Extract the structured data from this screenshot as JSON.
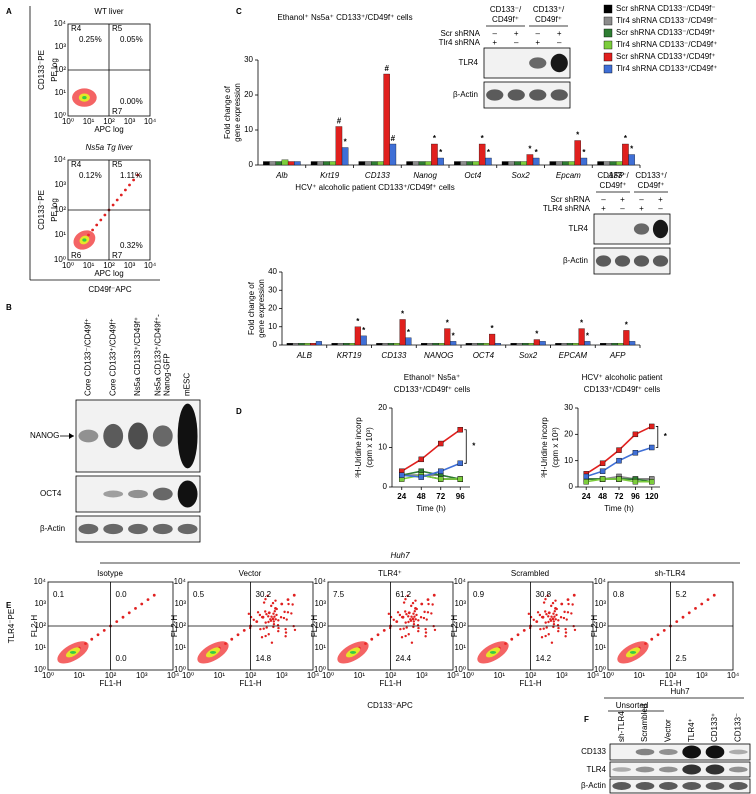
{
  "panel_a": {
    "label": "A",
    "plots": [
      {
        "title": "WT liver",
        "regions": [
          "R4",
          "R5",
          "R7"
        ],
        "values": [
          "0.25%",
          "0.05%",
          "0.00%"
        ]
      },
      {
        "title": "Ns5a Tg liver",
        "regions": [
          "R4",
          "R5",
          "R6",
          "R7"
        ],
        "values": [
          "0.12%",
          "1.11%",
          "0.32%"
        ]
      }
    ],
    "axis_x": "APC log",
    "axis_y": "PE log",
    "x_label": "CD49f⁻APC",
    "y_label": "CD133⁻PE",
    "ticks": [
      "10⁰",
      "10¹",
      "10²",
      "10³",
      "10⁴"
    ]
  },
  "panel_b": {
    "label": "B",
    "lanes": [
      [
        "Core CD133⁻/CD49f⁺"
      ],
      [
        "Core CD133⁺/CD49f⁺"
      ],
      [
        "Ns5a CD133⁺/CD49f⁺"
      ],
      [
        "Ns5a CD133⁺/CD49f⁺-",
        "Nanog-GFP"
      ],
      [
        "mESC"
      ]
    ],
    "rows": [
      "NANOG",
      "OCT4",
      "β-Actin"
    ]
  },
  "panel_c": {
    "label": "C",
    "blot_top": {
      "groups": [
        [
          "CD133⁻/",
          "CD49f⁺"
        ],
        [
          "CD133⁺/",
          "CD49f⁺"
        ]
      ],
      "conditions": [
        {
          "name": "Scr shRNA",
          "signs": [
            "–",
            "+",
            "–",
            "+"
          ]
        },
        {
          "name": "Tlr4 shRNA",
          "signs": [
            "+",
            "–",
            "+",
            "–"
          ]
        }
      ],
      "rows": [
        "TLR4",
        "β-Actin"
      ]
    },
    "blot_bottom": {
      "groups": [
        [
          "CD133⁻/",
          "CD49f⁺"
        ],
        [
          "CD133⁺/",
          "CD49f⁺"
        ]
      ],
      "conditions": [
        {
          "name": "Scr shRNA",
          "signs": [
            "–",
            "+",
            "–",
            "+"
          ]
        },
        {
          "name": "TLR4 shRNA",
          "signs": [
            "+",
            "–",
            "+",
            "–"
          ]
        }
      ],
      "rows": [
        "TLR4",
        "β-Actin"
      ]
    }
  },
  "panel_d": {
    "label": "D"
  },
  "panel_e": {
    "label": "E",
    "group": "Huh7",
    "plots": [
      {
        "title": "Isotype",
        "values": [
          "0.1",
          "0.0",
          "0.0"
        ]
      },
      {
        "title": "Vector",
        "values": [
          "0.5",
          "30.2",
          "14.8"
        ]
      },
      {
        "title": "TLR4⁺",
        "values": [
          "7.5",
          "61.2",
          "24.4"
        ]
      },
      {
        "title": "Scrambled",
        "values": [
          "0.9",
          "30.8",
          "14.2"
        ]
      },
      {
        "title": "sh-TLR4",
        "values": [
          "0.8",
          "5.2",
          "2.5"
        ]
      }
    ],
    "axis_x": "FL1-H",
    "axis_y": "FL2-H",
    "x_label": "CD133⁻APC",
    "y_label": "TLR4⁻PE",
    "ticks": [
      "10⁰",
      "10¹",
      "10²",
      "10³",
      "10⁴"
    ]
  },
  "panel_f": {
    "label": "F",
    "group": "Huh7",
    "subgroup": "Unsorted",
    "lanes": [
      "sh-TLR4",
      "Scrambled",
      "Vector",
      "TLR4⁺",
      "CD133⁺",
      "CD133⁻"
    ],
    "rows": [
      "CD133",
      "TLR4",
      "β-Actin"
    ]
  },
  "chart_data": [
    {
      "type": "bar",
      "title": "Ethanol⁺ Ns5a⁺ CD133⁺/CD49f⁺ cells",
      "ylabel": [
        "Fold change of",
        "gene expression"
      ],
      "categories": [
        "Alb",
        "Krt19",
        "CD133",
        "Nanog",
        "Oct4",
        "Sox2",
        "Epcam",
        "AFP"
      ],
      "ylim": [
        0,
        30
      ],
      "yticks": [
        0,
        10,
        20,
        30
      ],
      "series": [
        {
          "name": "Scr shRNA CD133⁻/CD49f⁻",
          "color": "#000000",
          "values": [
            1,
            1,
            1,
            1,
            1,
            1,
            1,
            1
          ]
        },
        {
          "name": "Tlr4 shRNA CD133⁻/CD49f⁻",
          "color": "#8c8c8c",
          "values": [
            1,
            1,
            1,
            1,
            1,
            1,
            1,
            1
          ]
        },
        {
          "name": "Scr shRNA CD133⁻/CD49f⁺",
          "color": "#2e7d32",
          "values": [
            1,
            1,
            1,
            1,
            1,
            1,
            1,
            1
          ]
        },
        {
          "name": "Tlr4 shRNA CD133⁻/CD49f⁺",
          "color": "#7ccd3c",
          "values": [
            1.5,
            1,
            1,
            1,
            1,
            1,
            1,
            1
          ]
        },
        {
          "name": "Scr shRNA CD133⁺/CD49f⁺",
          "color": "#e0201e",
          "values": [
            1,
            11,
            26,
            6,
            6,
            3,
            7,
            6
          ],
          "significance": [
            null,
            "#",
            "#",
            "*",
            "*",
            "*",
            "*",
            "*"
          ]
        },
        {
          "name": "Tlr4 shRNA CD133⁺/CD49f⁺",
          "color": "#3f6fd6",
          "values": [
            1,
            5,
            6,
            2,
            2,
            2,
            2,
            3
          ],
          "significance": [
            null,
            "*",
            "#",
            "*",
            "*",
            "*",
            "*",
            "*"
          ]
        }
      ]
    },
    {
      "type": "bar",
      "title": "HCV⁺ alcoholic patient CD133⁺/CD49f⁺ cells",
      "ylabel": [
        "Fold change of",
        "gene expression"
      ],
      "categories": [
        "ALB",
        "KRT19",
        "CD133",
        "NANOG",
        "OCT4",
        "Sox2",
        "EPCAM",
        "AFP"
      ],
      "ylim": [
        0,
        40
      ],
      "yticks": [
        0,
        10,
        20,
        30,
        40
      ],
      "series": [
        {
          "name": "Scr shRNA CD133⁻/CD49f⁻",
          "color": "#000000",
          "values": [
            1,
            1,
            1,
            1,
            1,
            1,
            1,
            1
          ]
        },
        {
          "name": "Tlr4 shRNA CD133⁻/CD49f⁻",
          "color": "#8c8c8c",
          "values": [
            1,
            1,
            1,
            1,
            1,
            1,
            1,
            1
          ]
        },
        {
          "name": "Scr shRNA CD133⁻/CD49f⁺",
          "color": "#2e7d32",
          "values": [
            1,
            1,
            1,
            1,
            1,
            1,
            1,
            1
          ]
        },
        {
          "name": "Tlr4 shRNA CD133⁻/CD49f⁺",
          "color": "#7ccd3c",
          "values": [
            1,
            1,
            1,
            1,
            1,
            1,
            1,
            1
          ]
        },
        {
          "name": "Scr shRNA CD133⁺/CD49f⁺",
          "color": "#e0201e",
          "values": [
            1,
            10,
            14,
            9,
            6,
            3,
            9,
            8
          ],
          "significance": [
            null,
            "*",
            "*",
            "*",
            "*",
            "*",
            "*",
            "*"
          ]
        },
        {
          "name": "Tlr4 shRNA CD133⁺/CD49f⁺",
          "color": "#3f6fd6",
          "values": [
            2,
            5,
            4,
            2,
            1,
            2,
            2,
            2
          ],
          "significance": [
            null,
            "*",
            "*",
            "*",
            null,
            null,
            "*",
            null
          ]
        }
      ]
    },
    {
      "type": "line",
      "title": [
        "Ethanol⁺ Ns5a⁺",
        "CD133⁺/CD49f⁺ cells"
      ],
      "ylabel": [
        "³H-Uridine incorp",
        "(cpm x 10³)"
      ],
      "xlabel": "Time (h)",
      "x": [
        24,
        48,
        72,
        96
      ],
      "xlim": [
        12,
        108
      ],
      "xticks": [
        24,
        48,
        72,
        96
      ],
      "ylim": [
        0,
        20
      ],
      "yticks": [
        0,
        10,
        20
      ],
      "annotation": "*",
      "series": [
        {
          "name": "Scr shRNA CD133⁻/CD49f⁻",
          "color": "#000000",
          "values": [
            3,
            3,
            2,
            2
          ]
        },
        {
          "name": "Tlr4 shRNA CD133⁻/CD49f⁻",
          "color": "#8c8c8c",
          "values": [
            3,
            3,
            3,
            2
          ]
        },
        {
          "name": "Scr shRNA CD133⁻/CD49f⁺",
          "color": "#2e7d32",
          "values": [
            3,
            4,
            3,
            2
          ]
        },
        {
          "name": "Tlr4 shRNA CD133⁻/CD49f⁺",
          "color": "#7ccd3c",
          "values": [
            2,
            3,
            2,
            2
          ]
        },
        {
          "name": "Scr shRNA CD133⁺/CD49f⁺",
          "color": "#e0201e",
          "values": [
            4,
            7,
            11,
            14.5
          ]
        },
        {
          "name": "Tlr4 shRNA CD133⁺/CD49f⁺",
          "color": "#3f6fd6",
          "values": [
            3,
            2.5,
            4,
            6
          ]
        }
      ]
    },
    {
      "type": "line",
      "title": [
        "HCV⁺ alcoholic patient",
        "CD133⁺/CD49f⁺ cells"
      ],
      "ylabel": [
        "³H-Uridine incorp",
        "(cpm x 10³)"
      ],
      "xlabel": "Time (h)",
      "x": [
        24,
        48,
        72,
        96,
        120
      ],
      "xlim": [
        12,
        132
      ],
      "xticks": [
        24,
        48,
        72,
        96,
        120
      ],
      "ylim": [
        0,
        30
      ],
      "yticks": [
        0,
        10,
        20,
        30
      ],
      "annotation": "*",
      "series": [
        {
          "name": "Scr shRNA CD133⁻/CD49f⁻",
          "color": "#000000",
          "values": [
            3,
            3,
            3,
            3,
            3
          ]
        },
        {
          "name": "Tlr4 shRNA CD133⁻/CD49f⁻",
          "color": "#8c8c8c",
          "values": [
            3,
            3,
            4,
            3,
            3
          ]
        },
        {
          "name": "Scr shRNA CD133⁻/CD49f⁺",
          "color": "#2e7d32",
          "values": [
            3,
            3,
            3,
            3,
            2
          ]
        },
        {
          "name": "Tlr4 shRNA CD133⁻/CD49f⁺",
          "color": "#7ccd3c",
          "values": [
            2,
            3,
            3,
            2,
            2
          ]
        },
        {
          "name": "Scr shRNA CD133⁺/CD49f⁺",
          "color": "#e0201e",
          "values": [
            5,
            9,
            14,
            20,
            23
          ]
        },
        {
          "name": "Tlr4 shRNA CD133⁺/CD49f⁺",
          "color": "#3f6fd6",
          "values": [
            4,
            6,
            10,
            13,
            15
          ]
        }
      ]
    }
  ]
}
